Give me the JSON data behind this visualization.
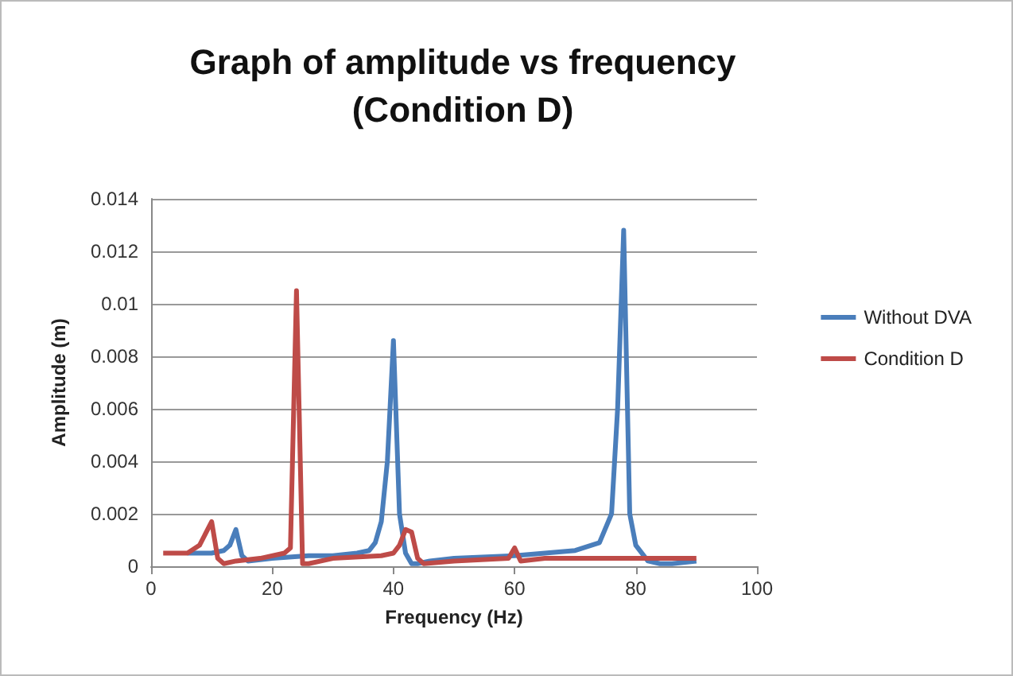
{
  "chart_data": {
    "type": "line",
    "title": "Graph of amplitude vs frequency\n(Condition D)",
    "xlabel": "Frequency (Hz)",
    "ylabel": "Amplitude (m)",
    "xlim": [
      0,
      100
    ],
    "xticks": [
      0,
      20,
      40,
      60,
      80,
      100
    ],
    "ylim": [
      0,
      0.014
    ],
    "yticks": [
      0,
      0.002,
      0.004,
      0.006,
      0.008,
      0.01,
      0.012,
      0.014
    ],
    "grid": "y",
    "legend": "right",
    "marker": "none",
    "line_style": "solid",
    "series": [
      {
        "name": "Without DVA",
        "color": "#4a7ebb",
        "x": [
          6,
          10,
          12,
          13,
          14,
          15,
          16,
          20,
          26,
          30,
          34,
          36,
          37,
          38,
          39,
          40,
          41,
          42,
          43,
          44,
          46,
          50,
          60,
          70,
          74,
          76,
          77,
          78,
          79,
          80,
          82,
          84,
          86,
          90
        ],
        "values": [
          0.0005,
          0.0005,
          0.0006,
          0.0008,
          0.0014,
          0.0004,
          0.0002,
          0.0003,
          0.0004,
          0.0004,
          0.0005,
          0.0006,
          0.0009,
          0.0017,
          0.004,
          0.0086,
          0.002,
          0.0005,
          0.0001,
          0.0001,
          0.0002,
          0.0003,
          0.0004,
          0.0006,
          0.0009,
          0.002,
          0.006,
          0.0128,
          0.002,
          0.0008,
          0.0002,
          0.0001,
          0.0001,
          0.0002
        ]
      },
      {
        "name": "Condition D",
        "color": "#be4b48",
        "x": [
          2,
          6,
          8,
          10,
          11,
          12,
          14,
          18,
          22,
          23,
          24,
          25,
          26,
          30,
          38,
          40,
          41,
          42,
          43,
          44,
          45,
          50,
          59,
          60,
          61,
          65,
          90
        ],
        "values": [
          0.0005,
          0.0005,
          0.0008,
          0.0017,
          0.0003,
          0.0001,
          0.0002,
          0.0003,
          0.0005,
          0.0007,
          0.0105,
          0.0001,
          0.0001,
          0.0003,
          0.0004,
          0.0005,
          0.0008,
          0.0014,
          0.0013,
          0.0003,
          0.0001,
          0.0002,
          0.0003,
          0.0007,
          0.0002,
          0.0003,
          0.0003
        ]
      }
    ]
  }
}
